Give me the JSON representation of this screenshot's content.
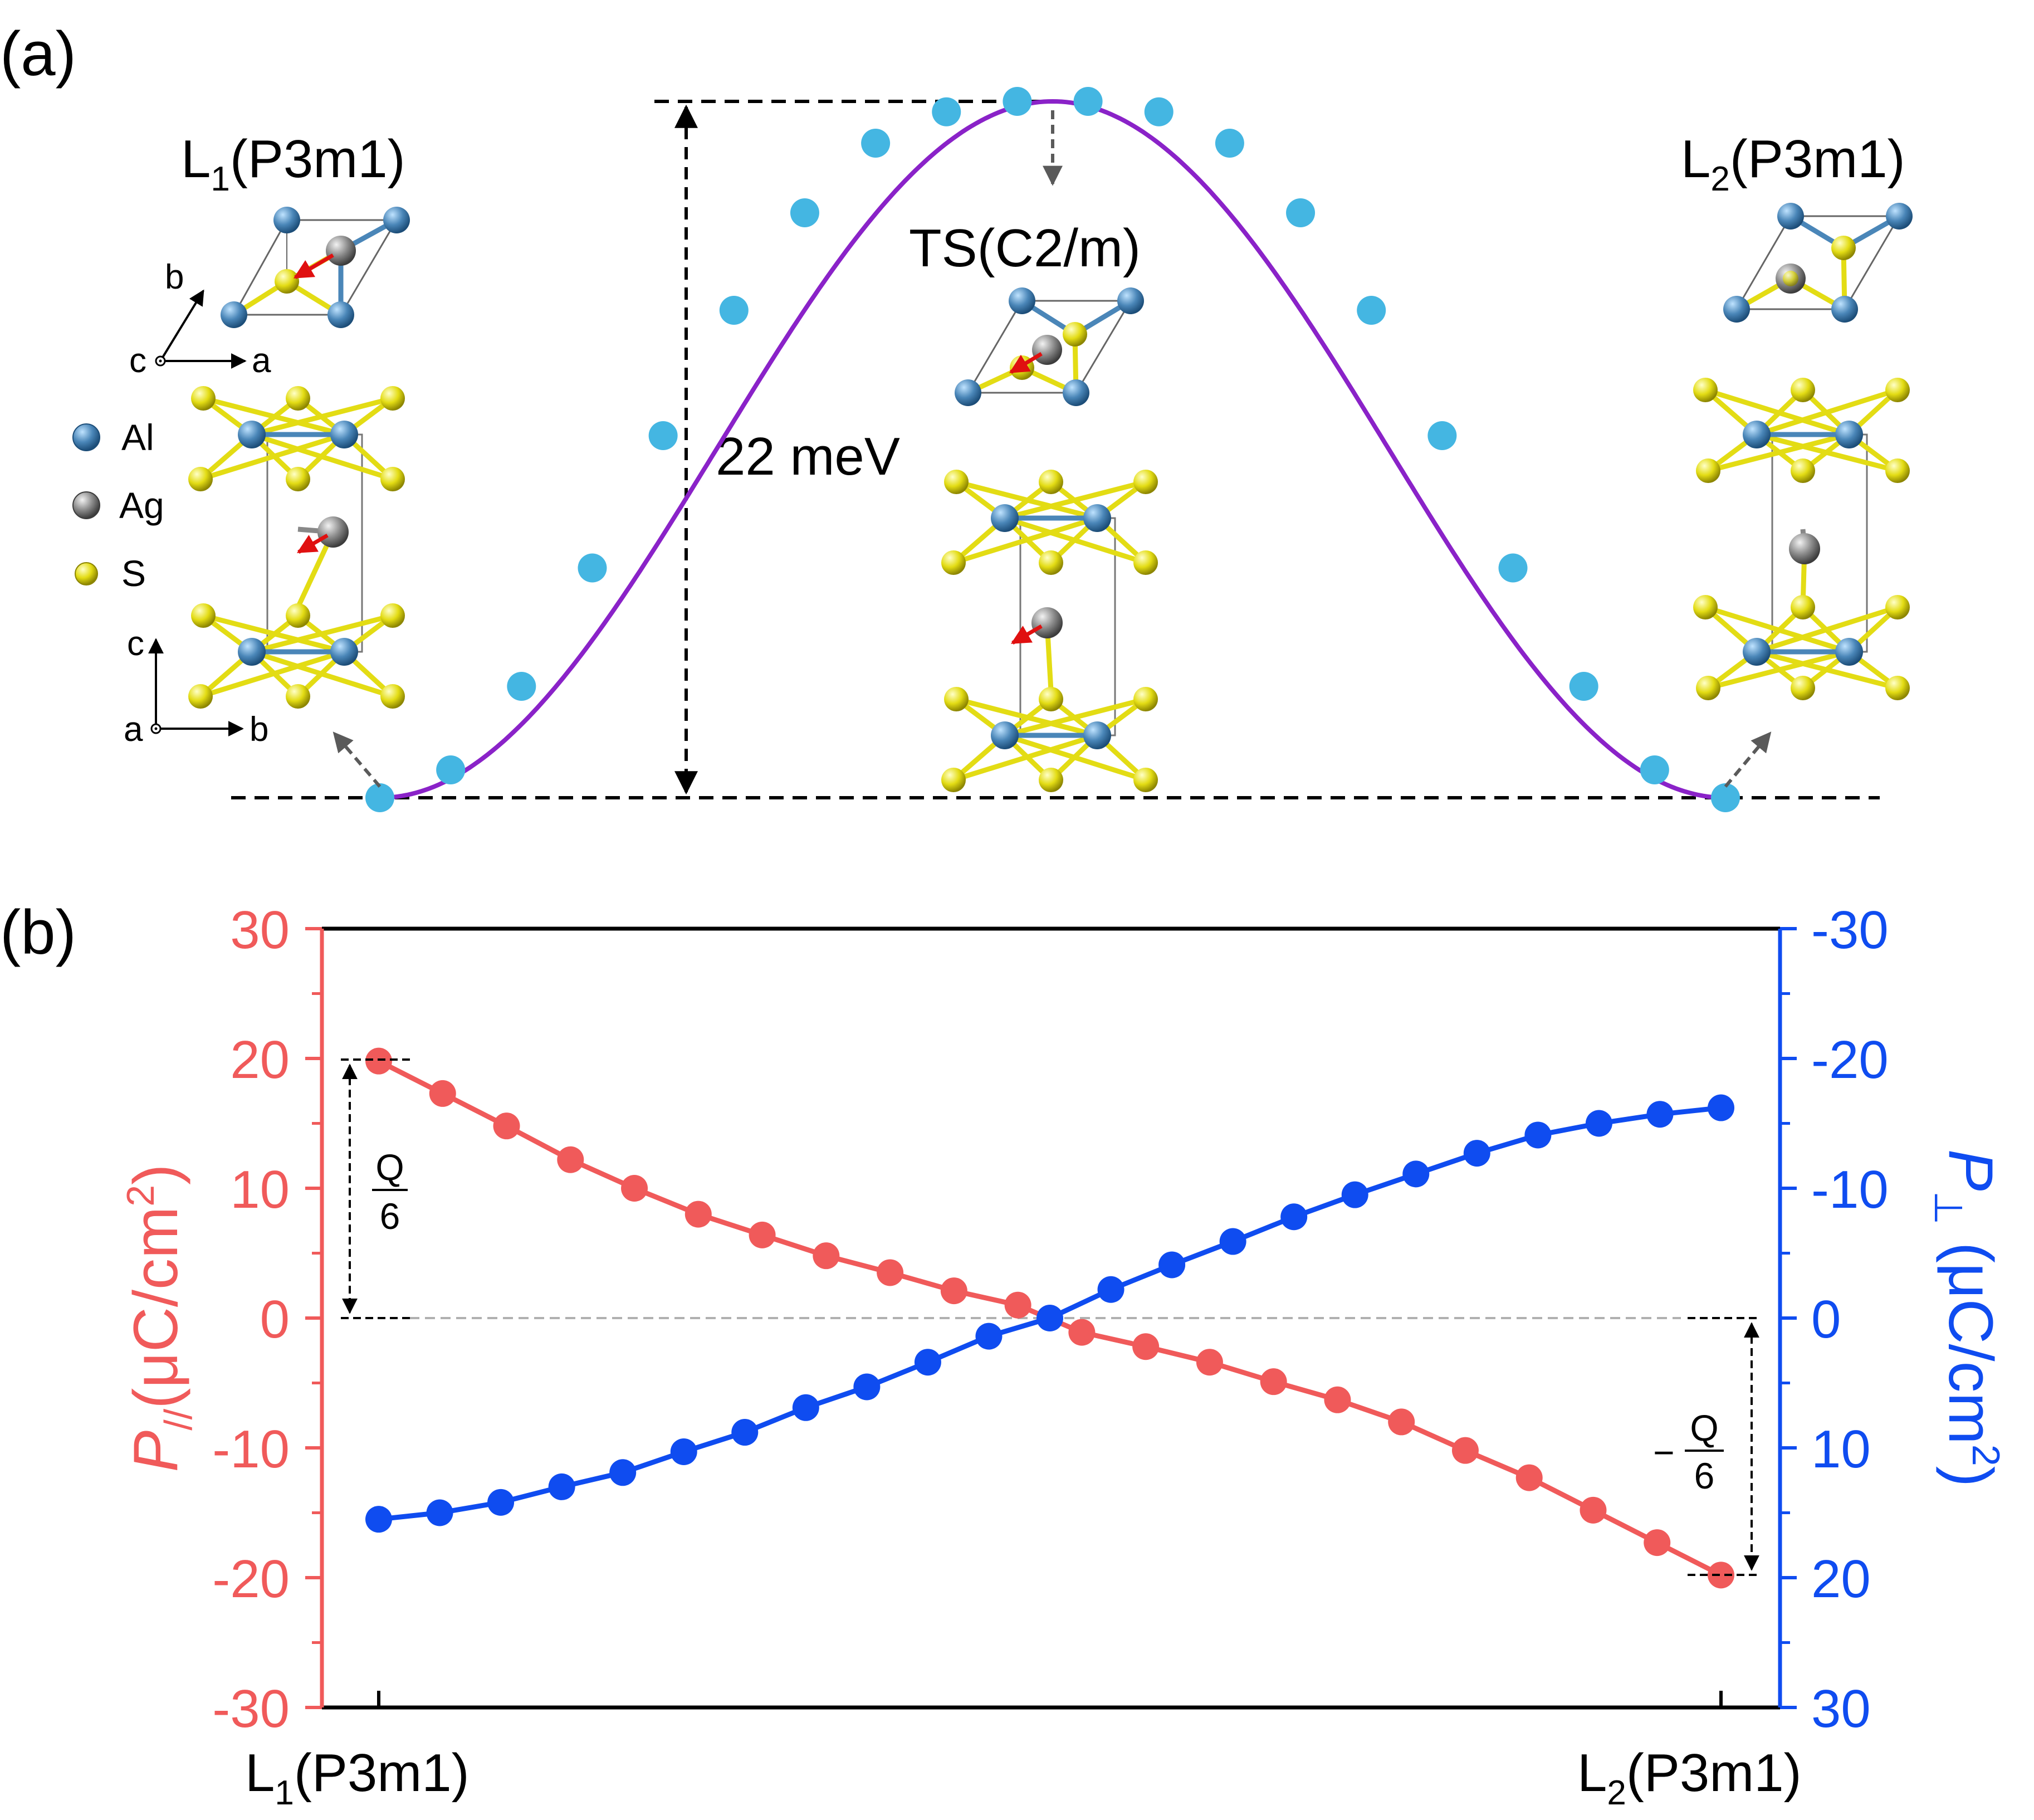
{
  "panels": {
    "a": {
      "label": "(a)",
      "left_structure_label": {
        "main": "L",
        "sub": "1",
        "rest": "(P3m1)"
      },
      "right_structure_label": {
        "main": "L",
        "sub": "2",
        "rest": "(P3m1)"
      },
      "ts_label": "TS(C2/m)",
      "barrier_label": "22 meV",
      "axes_top": {
        "c": "c",
        "a": "a",
        "b": "b"
      },
      "axes_side": {
        "c": "c",
        "a": "a",
        "b": "b"
      },
      "legend": [
        {
          "label": "Al",
          "color": "#4a86b8"
        },
        {
          "label": "Ag",
          "color": "#8a8a8a"
        },
        {
          "label": "S",
          "color": "#e3dc14"
        }
      ]
    },
    "b": {
      "label": "(b)",
      "ylabel_left": {
        "main": "P",
        "sub": "//",
        "rest": "(μC/cm",
        "sup": "2",
        "close": ")"
      },
      "ylabel_right": {
        "main": "P",
        "sub": "⊥",
        "rest": " (μC/cm",
        "sup": "2",
        "close": ")"
      },
      "xtick_left": {
        "main": "L",
        "sub": "1",
        "rest": "(P3m1)"
      },
      "xtick_right": {
        "main": "L",
        "sub": "2",
        "rest": "(P3m1)"
      },
      "annot_left": {
        "num": "Q",
        "den": "6"
      },
      "annot_right": {
        "sign": "−",
        "num": "Q",
        "den": "6"
      }
    }
  },
  "chart_data": [
    {
      "type": "line",
      "panel": "(a)",
      "title": "",
      "xlabel": "",
      "ylabel": "",
      "barrier_meV": 22,
      "curve_color": "#8a22c8",
      "marker_color": "#44b6e2",
      "series": [
        {
          "values": [
            0.0,
            0.04,
            0.16,
            0.33,
            0.52,
            0.7,
            0.84,
            0.94,
            0.985,
            1.0,
            1.0,
            0.985,
            0.94,
            0.84,
            0.7,
            0.52,
            0.33,
            0.16,
            0.04,
            0.0
          ]
        }
      ]
    },
    {
      "type": "line",
      "panel": "(b)",
      "title": "",
      "x_ticks": [
        "L1(P3m1)",
        "L2(P3m1)"
      ],
      "ylim_left": [
        -30,
        30
      ],
      "ylim_right": [
        30,
        -30
      ],
      "yticks": [
        "30",
        "20",
        "10",
        "0",
        "-10",
        "-20",
        "-30"
      ],
      "yticks_right": [
        "-30",
        "-20",
        "-10",
        "0",
        "10",
        "20",
        "30"
      ],
      "series": [
        {
          "axis": "left",
          "color": "#f05a5a",
          "values": [
            19.8,
            17.3,
            14.8,
            12.2,
            10.0,
            8.0,
            6.4,
            4.8,
            3.5,
            2.1,
            1.0,
            -1.1,
            -2.2,
            -3.4,
            -4.9,
            -6.3,
            -8.0,
            -10.2,
            -12.3,
            -14.8,
            -17.3,
            -19.8
          ]
        },
        {
          "axis": "right",
          "color": "#0f4cf0",
          "values": [
            15.5,
            15.0,
            14.2,
            13.0,
            11.9,
            10.3,
            8.8,
            6.9,
            5.3,
            3.4,
            1.4,
            0.0,
            -2.2,
            -4.1,
            -5.9,
            -7.8,
            -9.5,
            -11.1,
            -12.7,
            -14.1,
            -15.0,
            -15.7,
            -16.2
          ]
        }
      ]
    }
  ]
}
